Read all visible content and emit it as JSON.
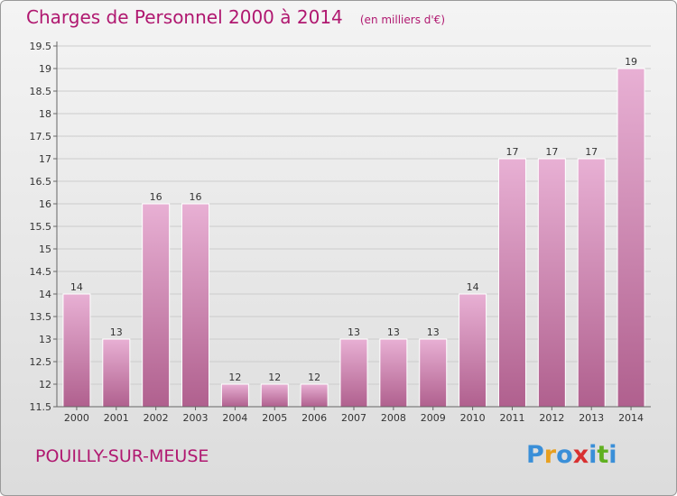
{
  "header": {
    "title": "Charges de Personnel 2000 à 2014",
    "unit": "(en milliers d'€)"
  },
  "footer": {
    "commune": "POUILLY-SUR-MEUSE",
    "logo": "Proxiti",
    "logo_colors": [
      "#3a8fd8",
      "#e8a020",
      "#3a8fd8",
      "#d83030",
      "#3a8fd8",
      "#60b020",
      "#3a8fd8"
    ]
  },
  "colors": {
    "accent": "#b01870",
    "bar_top": "#e8b0d4",
    "bar_bottom": "#b0608e",
    "grid": "#cccccc"
  },
  "chart_data": {
    "type": "bar",
    "categories": [
      "2000",
      "2001",
      "2002",
      "2003",
      "2004",
      "2005",
      "2006",
      "2007",
      "2008",
      "2009",
      "2010",
      "2011",
      "2012",
      "2013",
      "2014"
    ],
    "values": [
      14,
      13,
      16,
      16,
      12,
      12,
      12,
      13,
      13,
      13,
      14,
      17,
      17,
      17,
      19
    ],
    "data_labels": [
      "14",
      "13",
      "16",
      "16",
      "12",
      "12",
      "12",
      "13",
      "13",
      "13",
      "14",
      "17",
      "17",
      "17",
      "19"
    ],
    "yticks": [
      "11.5",
      "12",
      "12.5",
      "13",
      "13.5",
      "14",
      "14.5",
      "15",
      "15.5",
      "16",
      "16.5",
      "17",
      "17.5",
      "18",
      "18.5",
      "19",
      "19.5"
    ],
    "ylim": [
      11.5,
      19.5
    ],
    "grid": true,
    "legend": "none"
  }
}
